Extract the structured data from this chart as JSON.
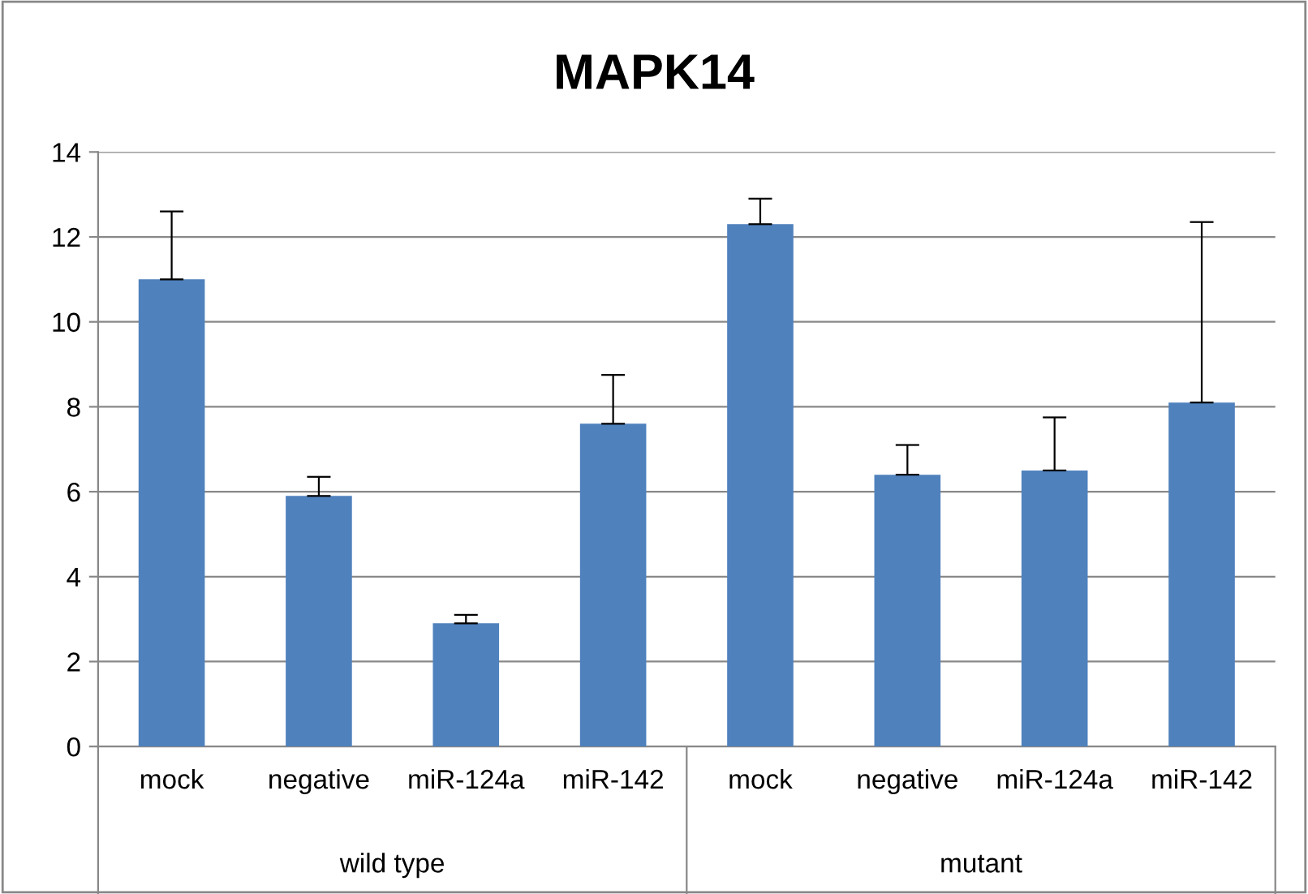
{
  "chart_data": {
    "type": "bar",
    "title": "MAPK14",
    "categories": [
      "mock",
      "negative",
      "miR-124a",
      "miR-142",
      "mock",
      "negative",
      "miR-124a",
      "miR-142"
    ],
    "values": [
      11.0,
      5.9,
      2.9,
      7.6,
      12.3,
      6.4,
      6.5,
      8.1
    ],
    "errors": [
      [
        11.0,
        12.6
      ],
      [
        5.9,
        6.35
      ],
      [
        2.9,
        3.1
      ],
      [
        7.6,
        8.75
      ],
      [
        12.3,
        12.9
      ],
      [
        6.4,
        7.1
      ],
      [
        6.5,
        7.75
      ],
      [
        8.1,
        12.35
      ]
    ],
    "color": "#4f81bd",
    "ylim": [
      0,
      14
    ],
    "yticks": [
      0,
      2,
      4,
      6,
      8,
      10,
      12,
      14
    ],
    "grid": "y",
    "legend": false,
    "annotations": [
      "wild type",
      "mutant"
    ]
  }
}
